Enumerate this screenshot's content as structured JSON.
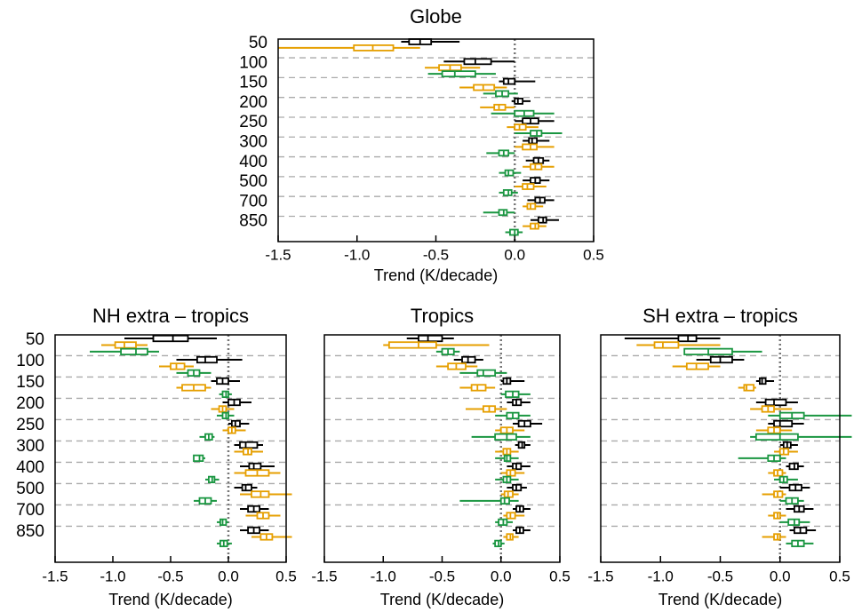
{
  "chart_data": [
    {
      "type": "box",
      "title": "Globe",
      "xlabel": "Trend (K/decade)",
      "categories": [
        "50",
        "100",
        "150",
        "200",
        "250",
        "300",
        "400",
        "500",
        "700",
        "850"
      ],
      "xlim": [
        -1.5,
        0.5
      ],
      "xticks": [
        -1.5,
        {
          "value": -1,
          "label": "-1.0"
        },
        -0.5,
        {
          "value": 0,
          "label": "0.0"
        },
        0.5
      ],
      "grid": true,
      "series": [
        {
          "color": "#000000",
          "values": [
            [
              -0.72,
              -0.67,
              -0.6,
              -0.53,
              -0.35
            ],
            [
              -0.45,
              -0.32,
              -0.25,
              -0.15,
              0.0
            ],
            [
              -0.1,
              -0.07,
              -0.04,
              0.0,
              0.13
            ],
            [
              -0.02,
              0.0,
              0.02,
              0.05,
              0.1
            ],
            [
              0.0,
              0.05,
              0.1,
              0.15,
              0.25
            ],
            [
              0.05,
              0.09,
              0.11,
              0.14,
              0.22
            ],
            [
              0.07,
              0.12,
              0.15,
              0.18,
              0.22
            ],
            [
              0.05,
              0.1,
              0.13,
              0.16,
              0.22
            ],
            [
              0.08,
              0.13,
              0.16,
              0.19,
              0.25
            ],
            [
              0.1,
              0.15,
              0.18,
              0.2,
              0.28
            ]
          ]
        },
        {
          "color": "#e69f00",
          "values": [
            [
              -1.5,
              -1.02,
              -0.9,
              -0.77,
              -0.6
            ],
            [
              -0.57,
              -0.48,
              -0.41,
              -0.34,
              -0.22
            ],
            [
              -0.35,
              -0.26,
              -0.2,
              -0.13,
              -0.05
            ],
            [
              -0.22,
              -0.13,
              -0.1,
              -0.06,
              0.0
            ],
            [
              -0.05,
              0.0,
              0.03,
              0.07,
              0.15
            ],
            [
              0.0,
              0.05,
              0.1,
              0.14,
              0.25
            ],
            [
              0.05,
              0.1,
              0.13,
              0.17,
              0.25
            ],
            [
              0.0,
              0.05,
              0.08,
              0.12,
              0.2
            ],
            [
              0.05,
              0.08,
              0.1,
              0.13,
              0.18
            ],
            [
              0.05,
              0.1,
              0.13,
              0.15,
              0.2
            ]
          ]
        },
        {
          "color": "#1a9641",
          "values": [
            null,
            [
              -0.55,
              -0.46,
              -0.38,
              -0.25,
              -0.12
            ],
            [
              -0.2,
              -0.12,
              -0.08,
              -0.04,
              0.02
            ],
            [
              -0.15,
              0.0,
              0.06,
              0.12,
              0.25
            ],
            [
              0.0,
              0.1,
              0.14,
              0.17,
              0.3
            ],
            [
              -0.18,
              -0.1,
              -0.07,
              -0.04,
              0.0
            ],
            [
              -0.1,
              -0.06,
              -0.04,
              -0.01,
              0.04
            ],
            [
              -0.1,
              -0.07,
              -0.04,
              -0.02,
              0.02
            ],
            [
              -0.2,
              -0.1,
              -0.07,
              -0.05,
              0.0
            ],
            [
              -0.06,
              -0.03,
              0.0,
              0.02,
              0.05
            ]
          ]
        }
      ]
    },
    {
      "type": "box",
      "title": "NH extra – tropics",
      "xlabel": "Trend (K/decade)",
      "categories": [
        "50",
        "100",
        "150",
        "200",
        "250",
        "300",
        "400",
        "500",
        "700",
        "850"
      ],
      "xlim": [
        -1.5,
        0.5
      ],
      "xticks": [
        -1.5,
        {
          "value": -1,
          "label": "-1.0"
        },
        -0.5,
        {
          "value": 0,
          "label": "0.0"
        },
        0.5
      ],
      "grid": true,
      "series": [
        {
          "color": "#000000",
          "values": [
            [
              -0.9,
              -0.65,
              -0.48,
              -0.35,
              -0.1
            ],
            [
              -0.45,
              -0.27,
              -0.2,
              -0.1,
              0.12
            ],
            [
              -0.15,
              -0.1,
              -0.05,
              0.0,
              0.1
            ],
            [
              -0.05,
              0.0,
              0.05,
              0.1,
              0.2
            ],
            [
              0.0,
              0.03,
              0.06,
              0.1,
              0.18
            ],
            [
              0.05,
              0.1,
              0.15,
              0.25,
              0.3
            ],
            [
              0.1,
              0.18,
              0.22,
              0.28,
              0.4
            ],
            [
              0.05,
              0.12,
              0.15,
              0.2,
              0.25
            ],
            [
              0.1,
              0.17,
              0.22,
              0.27,
              0.35
            ],
            [
              0.1,
              0.17,
              0.22,
              0.27,
              0.35
            ]
          ]
        },
        {
          "color": "#e69f00",
          "values": [
            [
              -1.1,
              -0.98,
              -0.9,
              -0.8,
              -0.7
            ],
            [
              -0.6,
              -0.5,
              -0.45,
              -0.38,
              -0.3
            ],
            [
              -0.45,
              -0.4,
              -0.3,
              -0.2,
              -0.15
            ],
            [
              -0.15,
              -0.08,
              -0.05,
              -0.02,
              0.05
            ],
            [
              -0.05,
              0.0,
              0.03,
              0.06,
              0.15
            ],
            [
              0.05,
              0.13,
              0.17,
              0.2,
              0.3
            ],
            [
              0.05,
              0.15,
              0.25,
              0.35,
              0.45
            ],
            [
              0.1,
              0.2,
              0.28,
              0.35,
              0.55
            ],
            [
              0.15,
              0.25,
              0.3,
              0.35,
              0.45
            ],
            [
              0.2,
              0.28,
              0.33,
              0.38,
              0.55
            ]
          ]
        },
        {
          "color": "#1a9641",
          "values": [
            [
              -1.2,
              -0.93,
              -0.8,
              -0.7,
              -0.6
            ],
            [
              -0.45,
              -0.35,
              -0.3,
              -0.25,
              -0.15
            ],
            [
              -0.08,
              -0.05,
              -0.02,
              0.0,
              0.03
            ],
            [
              -0.1,
              -0.05,
              -0.02,
              0.0,
              0.05
            ],
            [
              -0.25,
              -0.2,
              -0.17,
              -0.14,
              -0.12
            ],
            [
              -0.3,
              -0.3,
              -0.25,
              -0.22,
              -0.2
            ],
            [
              -0.2,
              -0.17,
              -0.14,
              -0.12,
              -0.08
            ],
            [
              -0.3,
              -0.25,
              -0.2,
              -0.15,
              -0.1
            ],
            [
              -0.1,
              -0.07,
              -0.05,
              -0.02,
              0.0
            ],
            [
              -0.1,
              -0.07,
              -0.04,
              -0.01,
              0.03
            ]
          ]
        }
      ]
    },
    {
      "type": "box",
      "title": "Tropics",
      "xlabel": "Trend (K/decade)",
      "xlim": [
        -1.5,
        0.5
      ],
      "xticks": [
        -1.5,
        {
          "value": -1,
          "label": "-1.0"
        },
        -0.5,
        {
          "value": 0,
          "label": "0.0"
        },
        0.5
      ],
      "grid": true,
      "series": [
        {
          "color": "#000000",
          "values": [
            [
              -0.8,
              -0.7,
              -0.62,
              -0.5,
              -0.4
            ],
            [
              -0.4,
              -0.33,
              -0.28,
              -0.22,
              -0.15
            ],
            [
              0.0,
              0.02,
              0.05,
              0.08,
              0.2
            ],
            [
              0.05,
              0.1,
              0.13,
              0.17,
              0.25
            ],
            [
              0.1,
              0.15,
              0.2,
              0.25,
              0.35
            ],
            [
              0.12,
              0.15,
              0.18,
              0.2,
              0.25
            ],
            [
              0.05,
              0.1,
              0.13,
              0.17,
              0.25
            ],
            [
              0.05,
              0.1,
              0.13,
              0.17,
              0.22
            ],
            [
              0.1,
              0.13,
              0.16,
              0.19,
              0.25
            ],
            [
              0.1,
              0.13,
              0.16,
              0.19,
              0.25
            ]
          ]
        },
        {
          "color": "#e69f00",
          "values": [
            [
              -1.0,
              -0.95,
              -0.7,
              -0.55,
              -0.1
            ],
            [
              -0.55,
              -0.45,
              -0.38,
              -0.3,
              -0.2
            ],
            [
              -0.35,
              -0.25,
              -0.2,
              -0.13,
              -0.05
            ],
            [
              -0.3,
              -0.15,
              -0.1,
              -0.05,
              0.05
            ],
            [
              -0.05,
              0.0,
              0.05,
              0.1,
              0.2
            ],
            [
              -0.05,
              0.02,
              0.05,
              0.08,
              0.15
            ],
            [
              0.0,
              0.05,
              0.08,
              0.12,
              0.2
            ],
            [
              0.0,
              0.03,
              0.06,
              0.1,
              0.15
            ],
            [
              0.02,
              0.05,
              0.08,
              0.12,
              0.2
            ],
            [
              0.02,
              0.05,
              0.08,
              0.1,
              0.15
            ]
          ]
        },
        {
          "color": "#1a9641",
          "values": [
            [
              -0.55,
              -0.5,
              -0.45,
              -0.4,
              -0.35
            ],
            [
              -0.35,
              -0.2,
              -0.15,
              -0.05,
              0.05
            ],
            [
              0.0,
              0.04,
              0.1,
              0.15,
              0.25
            ],
            [
              -0.05,
              0.05,
              0.1,
              0.15,
              0.25
            ],
            [
              -0.25,
              -0.05,
              0.05,
              0.13,
              0.25
            ],
            [
              -0.05,
              0.03,
              0.05,
              0.08,
              0.15
            ],
            [
              -0.05,
              0.02,
              0.05,
              0.08,
              0.15
            ],
            [
              -0.35,
              0.0,
              0.03,
              0.07,
              0.15
            ],
            [
              -0.05,
              -0.02,
              0.02,
              0.05,
              0.1
            ],
            [
              -0.07,
              -0.05,
              -0.02,
              0.0,
              0.03
            ]
          ]
        }
      ]
    },
    {
      "type": "box",
      "title": "SH extra – tropics",
      "xlabel": "Trend (K/decade)",
      "xlim": [
        -1.5,
        0.5
      ],
      "xticks": [
        -1.5,
        {
          "value": -1,
          "label": "-1.0"
        },
        -0.5,
        {
          "value": 0,
          "label": "0.0"
        },
        0.5
      ],
      "grid": true,
      "series": [
        {
          "color": "#000000",
          "values": [
            [
              -1.3,
              -0.85,
              -0.77,
              -0.7,
              -0.5
            ],
            [
              -0.7,
              -0.58,
              -0.5,
              -0.4,
              -0.3
            ],
            [
              -0.2,
              -0.17,
              -0.15,
              -0.12,
              -0.05
            ],
            [
              -0.2,
              -0.12,
              -0.05,
              0.05,
              0.15
            ],
            [
              -0.1,
              -0.05,
              0.0,
              0.1,
              0.2
            ],
            [
              0.0,
              0.03,
              0.06,
              0.09,
              0.15
            ],
            [
              0.05,
              0.08,
              0.12,
              0.15,
              0.2
            ],
            [
              0.0,
              0.08,
              0.13,
              0.18,
              0.25
            ],
            [
              0.05,
              0.12,
              0.16,
              0.2,
              0.28
            ],
            [
              0.08,
              0.12,
              0.17,
              0.22,
              0.3
            ]
          ]
        },
        {
          "color": "#e69f00",
          "values": [
            [
              -1.2,
              -1.05,
              -0.98,
              -0.85,
              -0.5
            ],
            [
              -0.9,
              -0.78,
              -0.7,
              -0.6,
              -0.5
            ],
            [
              -0.35,
              -0.3,
              -0.28,
              -0.22,
              -0.2
            ],
            [
              -0.25,
              -0.15,
              -0.1,
              -0.05,
              0.1
            ],
            [
              -0.2,
              -0.1,
              -0.05,
              0.0,
              0.1
            ],
            [
              -0.05,
              0.0,
              0.03,
              0.07,
              0.15
            ],
            [
              -0.1,
              -0.05,
              -0.02,
              0.02,
              0.05
            ],
            [
              -0.15,
              -0.05,
              -0.02,
              0.02,
              0.05
            ],
            [
              -0.1,
              -0.05,
              -0.02,
              0.0,
              0.05
            ],
            [
              -0.15,
              -0.05,
              -0.02,
              0.0,
              0.05
            ]
          ]
        },
        {
          "color": "#1a9641",
          "values": [
            [
              -0.8,
              -0.8,
              -0.6,
              -0.4,
              -0.15
            ],
            null,
            null,
            [
              -0.1,
              0.0,
              0.1,
              0.2,
              0.6
            ],
            [
              -0.25,
              -0.2,
              0.0,
              0.15,
              0.6
            ],
            [
              -0.35,
              -0.1,
              -0.05,
              0.0,
              0.05
            ],
            [
              -0.05,
              0.0,
              0.03,
              0.06,
              0.15
            ],
            [
              0.0,
              0.05,
              0.1,
              0.15,
              0.2
            ],
            [
              0.0,
              0.07,
              0.12,
              0.16,
              0.25
            ],
            [
              0.05,
              0.1,
              0.15,
              0.2,
              0.28
            ]
          ]
        }
      ]
    }
  ]
}
